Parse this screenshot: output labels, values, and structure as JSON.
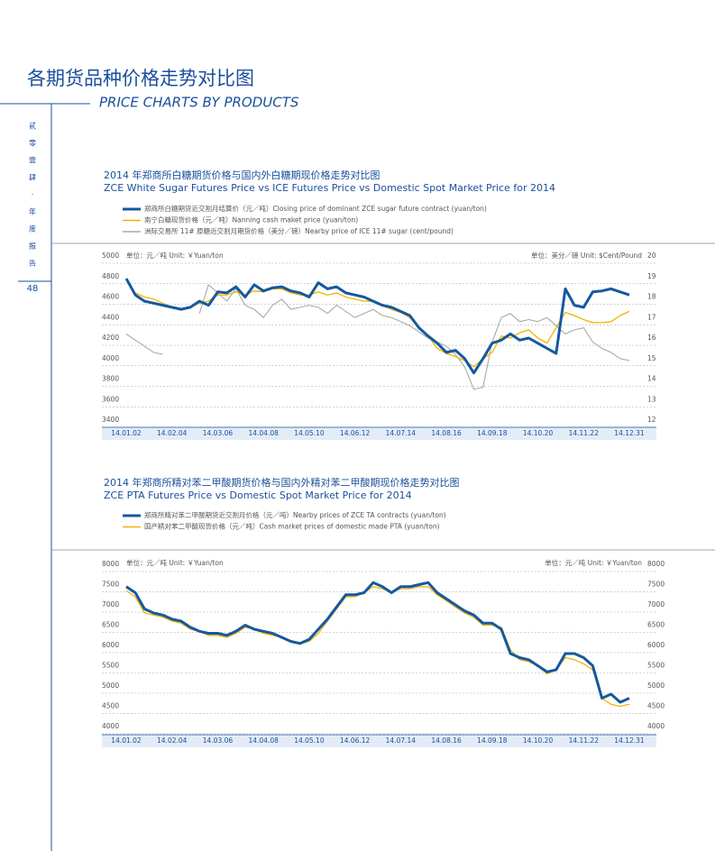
{
  "header": {
    "title": "各期货品种价格走势对比图",
    "subtitle": "PRICE CHARTS BY PRODUCTS"
  },
  "side": {
    "chars": [
      "贰",
      "零",
      "壹",
      "肆",
      "·",
      "年",
      "度",
      "报",
      "告"
    ],
    "page": "48"
  },
  "chart_data": [
    {
      "type": "line",
      "title": "2014 年郑商所白糖期货价格与国内外白糖期现价格走势对比图",
      "subtitle": "ZCE White Sugar Futures Price vs ICE Futures Price vs Domestic Spot Market Price for 2014",
      "ylabel": "单位：元／吨  Unit: ￥Yuan/ton",
      "y2label": "单位：美分／磅  Unit: $Cent/Pound",
      "categories": [
        "14.01.02",
        null,
        null,
        null,
        null,
        "14.02.04",
        null,
        null,
        null,
        null,
        "14.03.06",
        null,
        null,
        null,
        null,
        "14.04.08",
        null,
        null,
        null,
        null,
        "14.05.10",
        null,
        null,
        null,
        null,
        "14.06.12",
        null,
        null,
        null,
        null,
        "14.07.14",
        null,
        null,
        null,
        null,
        "14.08.16",
        null,
        null,
        null,
        null,
        "14.09.18",
        null,
        null,
        null,
        null,
        "14.10.20",
        null,
        null,
        null,
        null,
        "14.11.22",
        null,
        null,
        null,
        null,
        "14.12.31"
      ],
      "ylim": [
        3400,
        5000
      ],
      "yticks": [
        3400,
        3600,
        3800,
        4000,
        4200,
        4400,
        4600,
        4800,
        5000
      ],
      "y2lim": [
        12,
        20
      ],
      "y2ticks": [
        12,
        13,
        14,
        15,
        16,
        17,
        18,
        19,
        20
      ],
      "grid": true,
      "series": [
        {
          "name": "郑商所白糖期货近交割月结算价（元／吨）Closing price of dominant ZCE sugar future contract (yuan/ton)",
          "color": "#15589f",
          "width": 3,
          "values": [
            4780,
            4620,
            4560,
            4540,
            4520,
            4500,
            4480,
            4500,
            4560,
            4520,
            4650,
            4640,
            4700,
            4600,
            4720,
            4660,
            4690,
            4700,
            4660,
            4640,
            4600,
            4740,
            4680,
            4700,
            4640,
            4620,
            4600,
            4560,
            4520,
            4500,
            4460,
            4420,
            4300,
            4220,
            4150,
            4060,
            4080,
            4000,
            3860,
            4000,
            4150,
            4180,
            4240,
            4180,
            4200,
            4150,
            4100,
            4050,
            4680,
            4520,
            4500,
            4650,
            4660,
            4680,
            4650,
            4620
          ]
        },
        {
          "name": "南宁白糖现货价格（元／吨）Nanning cash maket price (yuan/ton)",
          "color": "#f0b400",
          "width": 1.3,
          "values": [
            null,
            4640,
            4600,
            4580,
            4540,
            4500,
            4480,
            4500,
            4540,
            4560,
            4620,
            4620,
            4650,
            4620,
            4660,
            4650,
            4680,
            4680,
            4640,
            4620,
            4620,
            4650,
            4620,
            4640,
            4600,
            4580,
            4560,
            4560,
            4520,
            4480,
            4450,
            4400,
            4300,
            4220,
            4100,
            4050,
            4020,
            3980,
            3920,
            4000,
            4060,
            4220,
            4200,
            4250,
            4280,
            4200,
            4150,
            4300,
            4450,
            4420,
            4380,
            4350,
            4350,
            4360,
            4420,
            4460
          ]
        },
        {
          "name": "洲际交易所 11# 原糖近交割月期货价格（美分／磅）Nearby price of ICE 11# sugar (cent/pound)",
          "color": "#a9a9a9",
          "width": 1.1,
          "axis": "y2",
          "values": [
            16.2,
            15.9,
            15.6,
            15.3,
            15.2,
            null,
            15.9,
            null,
            17.2,
            18.6,
            18.2,
            17.8,
            18.4,
            17.6,
            17.4,
            17.0,
            17.6,
            17.9,
            17.4,
            17.5,
            17.6,
            17.5,
            17.2,
            17.6,
            17.3,
            17.0,
            17.2,
            17.4,
            17.1,
            17.0,
            16.8,
            16.6,
            16.3,
            16.0,
            15.8,
            15.6,
            15.2,
            14.6,
            13.5,
            13.6,
            15.8,
            17.0,
            17.2,
            16.8,
            16.9,
            16.8,
            17.0,
            16.6,
            16.2,
            16.4,
            16.5,
            15.8,
            15.5,
            15.3,
            15.0,
            14.9
          ]
        }
      ]
    },
    {
      "type": "line",
      "title": "2014 年郑商所精对苯二甲酸期货价格与国内外精对苯二甲酸期现价格走势对比图",
      "subtitle": "ZCE PTA Futures Price vs Domestic Spot Market Price for 2014",
      "ylabel": "单位：元／吨  Unit: ￥Yuan/ton",
      "y2label": "单位：元／吨  Unit: ￥Yuan/ton",
      "categories": [
        "14.01.02",
        null,
        null,
        null,
        null,
        "14.02.04",
        null,
        null,
        null,
        null,
        "14.03.06",
        null,
        null,
        null,
        null,
        "14.04.08",
        null,
        null,
        null,
        null,
        "14.05.10",
        null,
        null,
        null,
        null,
        "14.06.12",
        null,
        null,
        null,
        null,
        "14.07.14",
        null,
        null,
        null,
        null,
        "14.08.16",
        null,
        null,
        null,
        null,
        "14.09.18",
        null,
        null,
        null,
        null,
        "14.10.20",
        null,
        null,
        null,
        null,
        "14.11.22",
        null,
        null,
        null,
        null,
        "14.12.31"
      ],
      "ylim": [
        4000,
        8000
      ],
      "yticks": [
        4000,
        4500,
        5000,
        5500,
        6000,
        6500,
        7000,
        7500,
        8000
      ],
      "y2lim": [
        4000,
        8000
      ],
      "y2ticks": [
        4000,
        4500,
        5000,
        5500,
        6000,
        6500,
        7000,
        7500,
        8000
      ],
      "grid": true,
      "series": [
        {
          "name": "郑商所精对苯二甲酸期货近交割月价格（元／吨）Nearby prices of ZCE TA contracts (yuan/ton)",
          "color": "#15589f",
          "width": 3,
          "values": [
            7450,
            7300,
            6900,
            6800,
            6750,
            6650,
            6600,
            6450,
            6350,
            6300,
            6300,
            6250,
            6350,
            6500,
            6400,
            6350,
            6300,
            6200,
            6100,
            6050,
            6150,
            6400,
            6650,
            6950,
            7250,
            7250,
            7300,
            7550,
            7450,
            7300,
            7450,
            7450,
            7500,
            7550,
            7300,
            7150,
            7000,
            6850,
            6750,
            6550,
            6550,
            6400,
            5800,
            5700,
            5650,
            5500,
            5350,
            5400,
            5800,
            5800,
            5700,
            5500,
            4700,
            4800,
            4600,
            4700
          ]
        },
        {
          "name": "国产精对苯二甲酸现货价格（元／吨）Cash market prices of domestic made PTA (yuan/ton)",
          "color": "#f0b400",
          "width": 1.3,
          "values": [
            7350,
            7200,
            6800,
            6750,
            6700,
            6600,
            6550,
            6400,
            6350,
            6250,
            6250,
            6200,
            6300,
            6450,
            6400,
            6300,
            6250,
            6200,
            6100,
            6050,
            6100,
            6300,
            6600,
            6900,
            7200,
            7200,
            7300,
            7450,
            7400,
            7300,
            7400,
            7400,
            7450,
            7450,
            7250,
            7100,
            6950,
            6800,
            6700,
            6500,
            6500,
            6450,
            5900,
            5650,
            5600,
            5500,
            5300,
            5400,
            5700,
            5650,
            5550,
            5400,
            4700,
            4550,
            4500,
            4550
          ]
        }
      ]
    }
  ]
}
